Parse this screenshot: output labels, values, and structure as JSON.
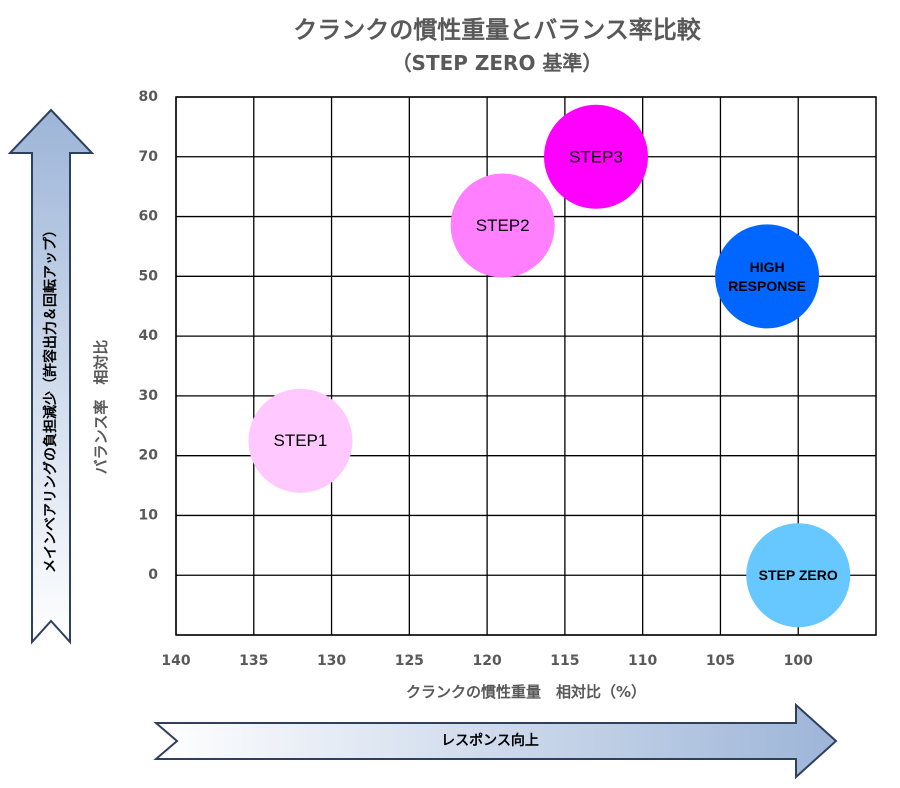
{
  "chart_data": {
    "type": "bubble",
    "title": "クランクの慣性重量とバランス率比較",
    "subtitle": "（STEP ZERO 基準）",
    "xlabel": "クランクの慣性重量　相対比（%）",
    "ylabel": "バランス率　相対比",
    "x_reversed": true,
    "xlim": [
      140,
      95
    ],
    "ylim": [
      -10,
      80
    ],
    "x_ticks": [
      140,
      135,
      130,
      125,
      120,
      115,
      110,
      105,
      100
    ],
    "y_ticks": [
      0,
      10,
      20,
      30,
      40,
      50,
      60,
      70,
      80
    ],
    "grid": true,
    "points": [
      {
        "label": "STEP ZERO",
        "x": 100,
        "y": 0,
        "color": "#66c8ff",
        "text_color": "#000000",
        "bold": true
      },
      {
        "label": "HIGH RESPONSE",
        "label_lines": [
          "HIGH",
          "RESPONSE"
        ],
        "x": 102,
        "y": 50,
        "color": "#0066ff",
        "text_color": "#000000",
        "bold": true
      },
      {
        "label": "STEP1",
        "x": 132,
        "y": 22.5,
        "color": "#ffc8ff",
        "text_color": "#000000",
        "bold": false
      },
      {
        "label": "STEP2",
        "x": 119,
        "y": 58.5,
        "color": "#ff7fff",
        "text_color": "#000000",
        "bold": false
      },
      {
        "label": "STEP3",
        "x": 113,
        "y": 70,
        "color": "#ff00ff",
        "text_color": "#000000",
        "bold": false
      }
    ]
  },
  "arrows": {
    "vertical_label": "メインベアリングの負担減少（許容出力＆回転アップ）",
    "horizontal_label": "レスポンス向上",
    "gradient_dark": "#9db5d8",
    "gradient_light": "#ffffff",
    "border_color": "#2f3f5f"
  }
}
